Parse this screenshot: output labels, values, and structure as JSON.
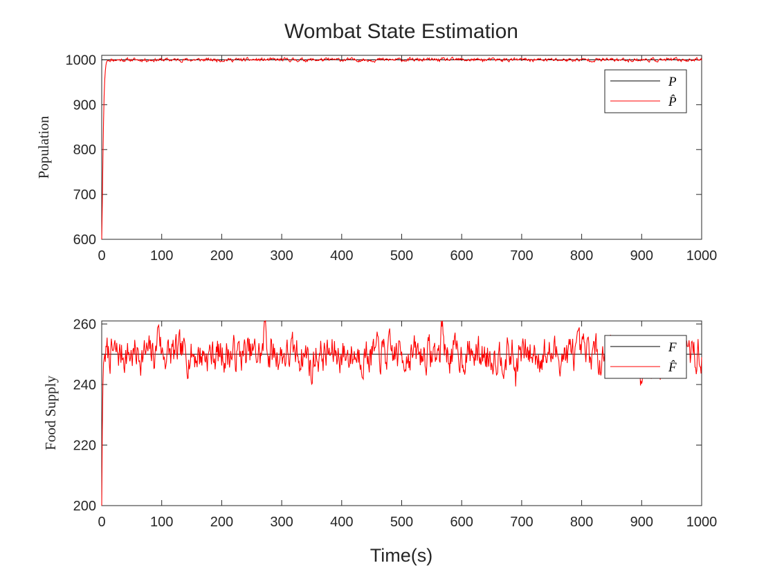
{
  "chart_data": {
    "title": "Wombat State Estimation",
    "xlabel": "Time(s)",
    "colors": {
      "true": "#000000",
      "estimate": "#ff0000",
      "axes": "#262626"
    },
    "panels": [
      {
        "type": "line",
        "ylabel": "Population",
        "xlim": [
          0,
          1000
        ],
        "ylim": [
          600,
          1010
        ],
        "xticks": [
          0,
          100,
          200,
          300,
          400,
          500,
          600,
          700,
          800,
          900,
          1000
        ],
        "yticks": [
          600,
          700,
          800,
          900,
          1000
        ],
        "grid": false,
        "legend_position": "top-right",
        "series": [
          {
            "name": "P",
            "role": "true",
            "points": [
              [
                0,
                1000
              ],
              [
                1000,
                1000
              ]
            ]
          },
          {
            "name": "P̂",
            "role": "estimate",
            "points": [
              [
                0,
                600
              ],
              [
                1,
                680
              ],
              [
                2,
                780
              ],
              [
                3,
                860
              ],
              [
                4,
                920
              ],
              [
                5,
                955
              ],
              [
                6,
                975
              ],
              [
                7,
                988
              ],
              [
                8,
                995
              ],
              [
                10,
                999
              ]
            ],
            "steady_mean": 1000,
            "noise_amplitude": 4,
            "noise_seed": 11
          }
        ]
      },
      {
        "type": "line",
        "ylabel": "Food Supply",
        "xlim": [
          0,
          1000
        ],
        "ylim": [
          200,
          261
        ],
        "xticks": [
          0,
          100,
          200,
          300,
          400,
          500,
          600,
          700,
          800,
          900,
          1000
        ],
        "yticks": [
          200,
          220,
          240,
          260
        ],
        "grid": false,
        "legend_position": "top-right",
        "series": [
          {
            "name": "F",
            "role": "true",
            "points": [
              [
                0,
                250
              ],
              [
                1000,
                250
              ]
            ]
          },
          {
            "name": "F̂",
            "role": "estimate",
            "points": [
              [
                0,
                200
              ],
              [
                1,
                225
              ],
              [
                2,
                240
              ],
              [
                3,
                247
              ],
              [
                5,
                250
              ]
            ],
            "steady_mean": 250,
            "noise_amplitude": 6,
            "noise_seed": 7,
            "events": [
              [
                95,
                261
              ],
              [
                273,
                261
              ],
              [
                350,
                242
              ],
              [
                568,
                261
              ],
              [
                690,
                243
              ],
              [
                850,
                256
              ],
              [
                898,
                241
              ]
            ]
          }
        ]
      }
    ]
  }
}
